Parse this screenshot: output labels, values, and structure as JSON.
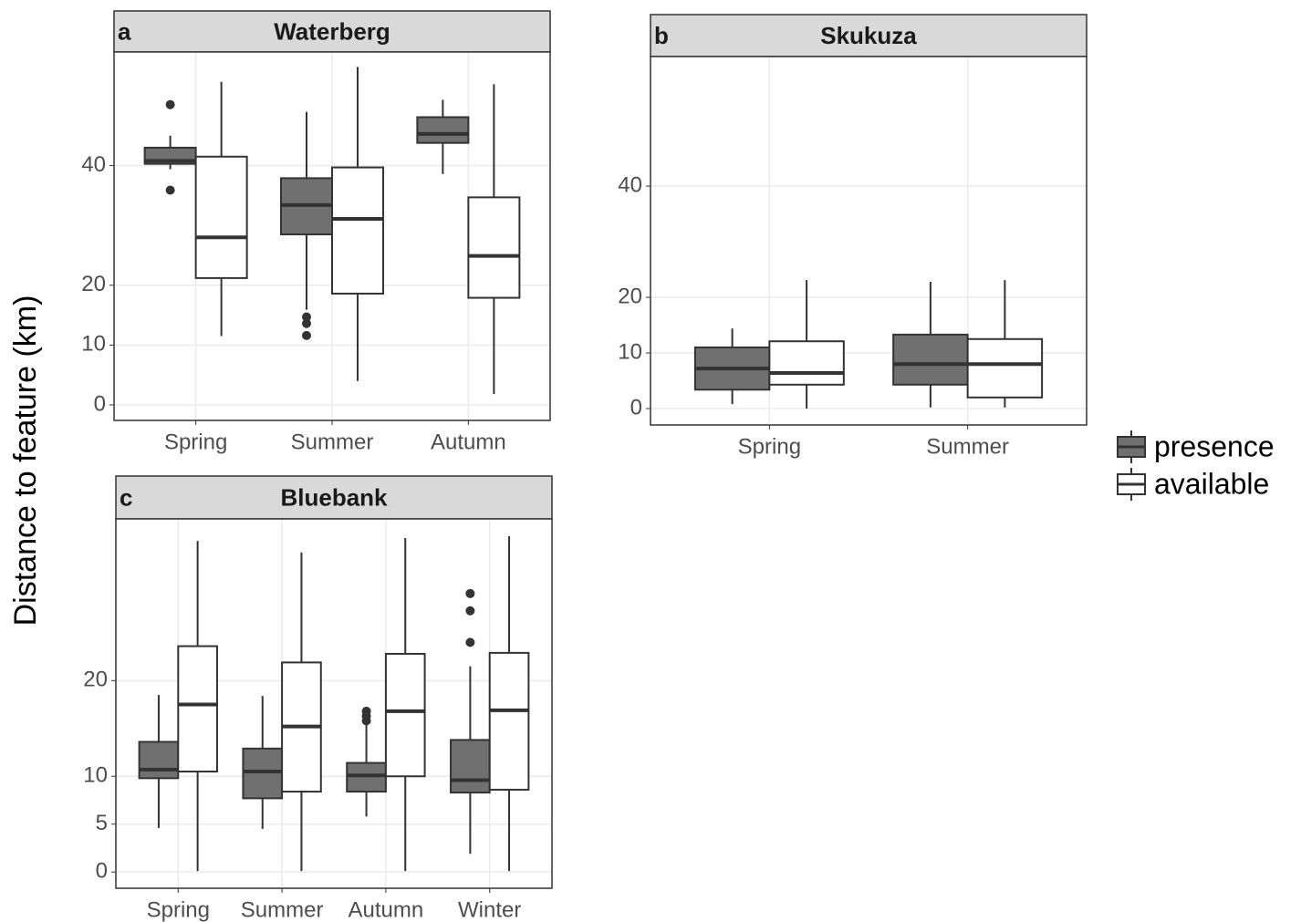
{
  "chart_data": [
    {
      "type": "box",
      "tag": "a",
      "title": "Waterberg",
      "ylabel": "Distance to feature (km)",
      "categories": [
        "Spring",
        "Summer",
        "Autumn"
      ],
      "ylim": [
        -2.6,
        59
      ],
      "yticks": [
        0,
        10,
        20,
        40
      ],
      "grid": true,
      "series": [
        {
          "name": "presence",
          "color": "#707070",
          "values": [
            {
              "min": 39.4,
              "q1": 40.3,
              "median": 40.8,
              "q3": 43,
              "max": 45,
              "outliers": [
                50.2,
                35.9
              ]
            },
            {
              "min": 15.9,
              "q1": 28.5,
              "median": 33.4,
              "q3": 37.9,
              "max": 49,
              "outliers": [
                14.7,
                13.6,
                11.6
              ]
            },
            {
              "min": 38.6,
              "q1": 43.8,
              "median": 45.3,
              "q3": 48.1,
              "max": 51,
              "outliers": []
            }
          ]
        },
        {
          "name": "available",
          "color": "#ffffff",
          "values": [
            {
              "min": 11.5,
              "q1": 21.2,
              "median": 28,
              "q3": 41.5,
              "max": 54,
              "outliers": []
            },
            {
              "min": 4,
              "q1": 18.6,
              "median": 31.1,
              "q3": 39.7,
              "max": 56.5,
              "outliers": []
            },
            {
              "min": 1.8,
              "q1": 17.9,
              "median": 24.9,
              "q3": 34.7,
              "max": 53.6,
              "outliers": []
            }
          ]
        }
      ]
    },
    {
      "type": "box",
      "tag": "b",
      "title": "Skukuza",
      "categories": [
        "Spring",
        "Summer"
      ],
      "ylim": [
        -2.95,
        63.3
      ],
      "yticks": [
        0,
        10,
        20,
        40
      ],
      "grid": true,
      "series": [
        {
          "color": "#707070",
          "values": [
            {
              "min": 0.8,
              "q1": 3.4,
              "median": 7.2,
              "q3": 11,
              "max": 14.4,
              "outliers": []
            },
            {
              "min": 0.2,
              "q1": 4.3,
              "median": 8,
              "q3": 13.3,
              "max": 22.8,
              "outliers": []
            }
          ]
        },
        {
          "color": "#ffffff",
          "values": [
            {
              "min": 0,
              "q1": 4.3,
              "median": 6.4,
              "q3": 12.1,
              "max": 23.1,
              "outliers": []
            },
            {
              "min": 0.2,
              "q1": 2,
              "median": 8,
              "q3": 12.5,
              "max": 23.1,
              "outliers": []
            }
          ]
        }
      ]
    },
    {
      "type": "box",
      "tag": "c",
      "title": "Bluebank",
      "categories": [
        "Spring",
        "Summer",
        "Autumn",
        "Winter"
      ],
      "ylim": [
        -1.7,
        36.9
      ],
      "yticks": [
        0,
        5,
        10,
        20
      ],
      "grid": true,
      "series": [
        {
          "color": "#707070",
          "values": [
            {
              "min": 4.6,
              "q1": 9.8,
              "median": 10.7,
              "q3": 13.6,
              "max": 18.5,
              "outliers": []
            },
            {
              "min": 4.5,
              "q1": 7.7,
              "median": 10.5,
              "q3": 12.9,
              "max": 18.4,
              "outliers": []
            },
            {
              "min": 5.8,
              "q1": 8.4,
              "median": 10.1,
              "q3": 11.4,
              "max": 15.5,
              "outliers": [
                16.8,
                16.3,
                15.8
              ]
            },
            {
              "min": 1.9,
              "q1": 8.3,
              "median": 9.6,
              "q3": 13.8,
              "max": 21.5,
              "outliers": [
                29.1,
                27.3,
                24
              ]
            }
          ]
        },
        {
          "color": "#ffffff",
          "values": [
            {
              "min": 0.1,
              "q1": 10.5,
              "median": 17.5,
              "q3": 23.6,
              "max": 34.6,
              "outliers": []
            },
            {
              "min": 0.1,
              "q1": 8.4,
              "median": 15.2,
              "q3": 21.9,
              "max": 33.4,
              "outliers": []
            },
            {
              "min": 0.1,
              "q1": 10,
              "median": 16.8,
              "q3": 22.8,
              "max": 34.9,
              "outliers": []
            },
            {
              "min": 0.1,
              "q1": 8.6,
              "median": 16.9,
              "q3": 22.9,
              "max": 35.1,
              "outliers": []
            }
          ]
        }
      ]
    }
  ]
}
